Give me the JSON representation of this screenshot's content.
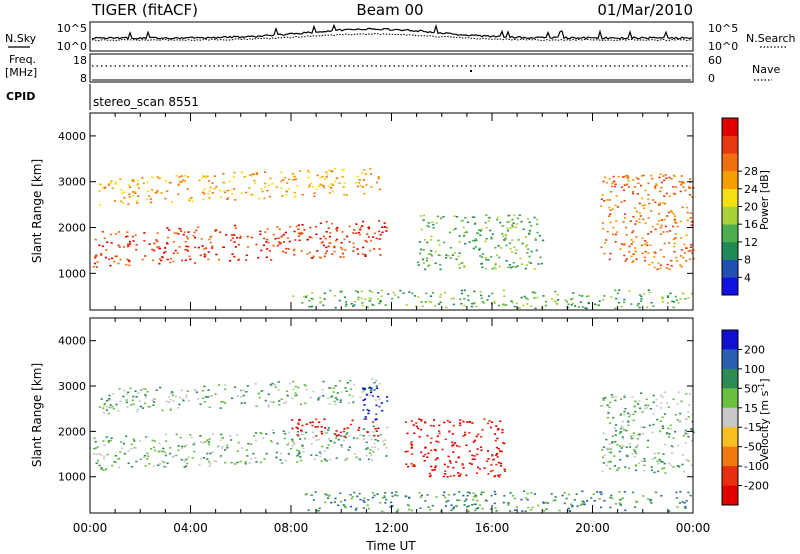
{
  "header": {
    "radar": "TIGER (fitACF)",
    "beam": "Beam 00",
    "date": "01/Mar/2010"
  },
  "status_panel": {
    "nsky_label": "N.Sky",
    "nsky_ticks": [
      "10^5",
      "10^0"
    ],
    "nsearch_label": "N.Search",
    "nsearch_ticks": [
      "10^5",
      "10^0"
    ],
    "freq_label_1": "Freq.",
    "freq_label_2": "[MHz]",
    "freq_ticks": [
      "18",
      "8"
    ],
    "nave_label": "Nave",
    "nave_ticks": [
      "60",
      "0"
    ],
    "cpid_label": "CPID",
    "cpid_value": "stereo_scan 8551"
  },
  "chart_data": [
    {
      "type": "heatmap",
      "ylabel": "Slant Range [km]",
      "xlabel": "",
      "yticks": [
        "1000",
        "2000",
        "3000",
        "4000"
      ],
      "ylim": [
        200,
        4500
      ],
      "xlim_hours": [
        0,
        24
      ],
      "colorbar": {
        "label": "Power [dB]",
        "ticks": [
          "4",
          "8",
          "12",
          "16",
          "20",
          "24",
          "28"
        ],
        "colors": [
          "#1010e0",
          "#2050b0",
          "#1f8a56",
          "#4cae4c",
          "#a8d238",
          "#f2e012",
          "#f5a000",
          "#f07010",
          "#e83a10",
          "#e00000"
        ]
      },
      "scatter_regions": [
        {
          "name": "main-band",
          "t_start": 0.1,
          "t_end": 11.8,
          "r_start": 1150,
          "r_end": 1950,
          "dominant": "28"
        },
        {
          "name": "upper-band",
          "t_start": 0.3,
          "t_end": 11.5,
          "r_start": 2500,
          "r_end": 3100,
          "dominant": "20"
        },
        {
          "name": "mid-patch",
          "t_start": 13.0,
          "t_end": 18.0,
          "r_start": 1100,
          "r_end": 2300,
          "dominant": "8"
        },
        {
          "name": "evening-band",
          "t_start": 20.3,
          "t_end": 24.0,
          "r_start": 1100,
          "r_end": 3200,
          "dominant": "24"
        },
        {
          "name": "ground-scatter",
          "t_start": 8.0,
          "t_end": 24.0,
          "r_start": 250,
          "r_end": 650,
          "dominant": "8"
        }
      ]
    },
    {
      "type": "heatmap",
      "ylabel": "Slant Range [km]",
      "xlabel": "Time UT",
      "xticks": [
        "00:00",
        "04:00",
        "08:00",
        "12:00",
        "16:00",
        "20:00",
        "00:00"
      ],
      "yticks": [
        "1000",
        "2000",
        "3000",
        "4000"
      ],
      "ylim": [
        200,
        4500
      ],
      "xlim_hours": [
        0,
        24
      ],
      "colorbar": {
        "label": "Velocity [m s",
        "label_sup": "-1",
        "label_end": "]",
        "ticks": [
          "200",
          "100",
          "50",
          "15",
          "-15",
          "-50",
          "-100",
          "-200"
        ],
        "colors": [
          "#1010d0",
          "#2a5fb0",
          "#2e8b57",
          "#6cc040",
          "#c8c8c8",
          "#f5c020",
          "#f07a10",
          "#e83010",
          "#e00000"
        ]
      },
      "scatter_regions": [
        {
          "name": "grey-band",
          "t_start": 0.1,
          "t_end": 11.8,
          "r_start": 1150,
          "r_end": 1900,
          "dominant": "15"
        },
        {
          "name": "upper-grey-band",
          "t_start": 0.3,
          "t_end": 11.5,
          "r_start": 2400,
          "r_end": 2950,
          "dominant": "15"
        },
        {
          "name": "red-patch",
          "t_start": 8.0,
          "t_end": 11.5,
          "r_start": 1900,
          "r_end": 2300,
          "dominant": "-200"
        },
        {
          "name": "blue-streak",
          "t_start": 10.8,
          "t_end": 11.8,
          "r_start": 2200,
          "r_end": 3000,
          "dominant": "200"
        },
        {
          "name": "mixed-patch",
          "t_start": 12.5,
          "t_end": 16.5,
          "r_start": 1000,
          "r_end": 2300,
          "dominant": "-200"
        },
        {
          "name": "evening-grey",
          "t_start": 20.3,
          "t_end": 24.0,
          "r_start": 1100,
          "r_end": 2900,
          "dominant": "15"
        },
        {
          "name": "ground-green",
          "t_start": 8.5,
          "t_end": 24.0,
          "r_start": 250,
          "r_end": 700,
          "dominant": "50"
        }
      ]
    }
  ]
}
